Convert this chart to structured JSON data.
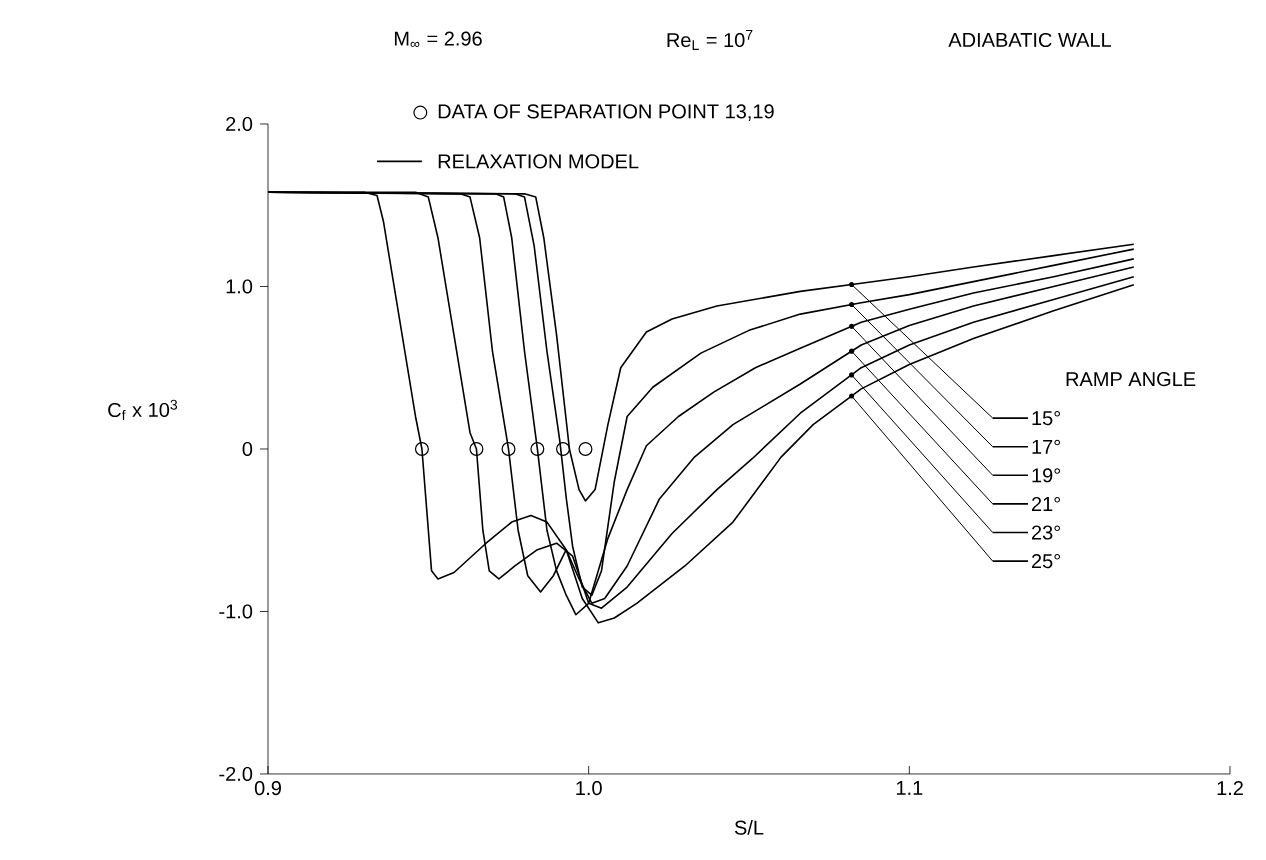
{
  "chart_data": {
    "type": "line",
    "title": "ADIABATIC WALL",
    "xlabel": "S/L",
    "ylabel": "C$_{f}$ x 10$^{3}$",
    "legend_title": "RAMP ANGLE",
    "annotations": [
      "M$_{∞}$ = 2.96",
      "Re$_{L}$ = 10$^{7}$",
      "RELAXATION MODEL"
    ],
    "xlim": [
      0.9,
      1.2
    ],
    "ylim": [
      -2.0,
      2.0
    ],
    "xticks": [
      0.9,
      {
        "value": 1.0,
        "label": "1.0"
      },
      1.1,
      1.2
    ],
    "yticks": [
      {
        "value": -2.0,
        "label": "-2.0"
      },
      {
        "value": -1.0,
        "label": "-1.0"
      },
      0,
      {
        "value": 1.0,
        "label": "1.0"
      },
      {
        "value": 2.0,
        "label": "2.0"
      }
    ],
    "grid": false,
    "legend": "right",
    "line_style": "solid",
    "marker": "none",
    "series": [
      {
        "name": "15°",
        "color": "#000000",
        "x": [
          0.9,
          0.98,
          0.9835,
          0.986,
          0.99,
          0.994,
          0.997,
          0.999,
          1.002,
          1.006,
          1.01,
          1.018,
          1.026,
          1.04,
          1.066,
          1.085,
          1.1,
          1.12,
          1.145,
          1.17
        ],
        "values": [
          1.58,
          1.57,
          1.55,
          1.3,
          0.7,
          0.0,
          -0.25,
          -0.32,
          -0.25,
          0.15,
          0.5,
          0.72,
          0.8,
          0.88,
          0.97,
          1.02,
          1.06,
          1.12,
          1.19,
          1.26
        ]
      },
      {
        "name": "17°",
        "color": "#000000",
        "x": [
          0.9,
          0.977,
          0.98,
          0.983,
          0.987,
          0.991,
          0.993,
          0.995,
          0.998,
          1.001,
          1.004,
          1.008,
          1.012,
          1.02,
          1.035,
          1.05,
          1.066,
          1.085,
          1.1,
          1.12,
          1.145,
          1.17
        ],
        "values": [
          1.58,
          1.57,
          1.55,
          1.25,
          0.6,
          0.05,
          -0.3,
          -0.6,
          -0.85,
          -0.9,
          -0.75,
          -0.2,
          0.2,
          0.38,
          0.59,
          0.73,
          0.83,
          0.9,
          0.95,
          1.03,
          1.13,
          1.23
        ]
      },
      {
        "name": "19°",
        "color": "#000000",
        "x": [
          0.9,
          0.971,
          0.9735,
          0.976,
          0.98,
          0.984,
          0.987,
          0.99,
          0.993,
          0.996,
          1.0,
          1.006,
          1.012,
          1.018,
          1.028,
          1.039,
          1.052,
          1.066,
          1.085,
          1.1,
          1.12,
          1.145,
          1.17
        ],
        "values": [
          1.58,
          1.57,
          1.55,
          1.3,
          0.6,
          0.0,
          -0.5,
          -0.75,
          -0.9,
          -1.02,
          -0.95,
          -0.55,
          -0.25,
          0.02,
          0.2,
          0.35,
          0.5,
          0.62,
          0.78,
          0.86,
          0.96,
          1.06,
          1.17
        ]
      },
      {
        "name": "21°",
        "color": "#000000",
        "x": [
          0.9,
          0.96,
          0.963,
          0.966,
          0.97,
          0.975,
          0.978,
          0.981,
          0.985,
          0.989,
          0.993,
          0.997,
          1.001,
          1.005,
          1.012,
          1.022,
          1.033,
          1.045,
          1.066,
          1.085,
          1.1,
          1.12,
          1.145,
          1.17
        ],
        "values": [
          1.58,
          1.57,
          1.55,
          1.3,
          0.6,
          0.0,
          -0.5,
          -0.78,
          -0.88,
          -0.78,
          -0.62,
          -0.8,
          -0.95,
          -0.92,
          -0.72,
          -0.31,
          -0.05,
          0.15,
          0.4,
          0.64,
          0.76,
          0.88,
          1.0,
          1.12
        ]
      },
      {
        "name": "23°",
        "color": "#000000",
        "x": [
          0.9,
          0.946,
          0.95,
          0.953,
          0.958,
          0.963,
          0.965,
          0.967,
          0.969,
          0.972,
          0.977,
          0.984,
          0.99,
          0.995,
          1.0,
          1.004,
          1.012,
          1.026,
          1.04,
          1.051,
          1.066,
          1.085,
          1.1,
          1.12,
          1.145,
          1.17
        ],
        "values": [
          1.58,
          1.58,
          1.55,
          1.3,
          0.7,
          0.1,
          0.0,
          -0.5,
          -0.75,
          -0.8,
          -0.72,
          -0.62,
          -0.58,
          -0.66,
          -0.95,
          -0.98,
          -0.85,
          -0.52,
          -0.25,
          -0.06,
          0.22,
          0.5,
          0.64,
          0.78,
          0.92,
          1.06
        ]
      },
      {
        "name": "25°",
        "color": "#000000",
        "x": [
          0.9,
          0.93,
          0.934,
          0.936,
          0.941,
          0.946,
          0.948,
          0.95,
          0.951,
          0.953,
          0.958,
          0.968,
          0.976,
          0.982,
          0.987,
          0.993,
          0.998,
          1.003,
          1.008,
          1.015,
          1.03,
          1.045,
          1.06,
          1.07,
          1.085,
          1.1,
          1.12,
          1.145,
          1.17
        ],
        "values": [
          1.58,
          1.58,
          1.56,
          1.4,
          0.8,
          0.2,
          0.0,
          -0.5,
          -0.75,
          -0.8,
          -0.76,
          -0.58,
          -0.45,
          -0.41,
          -0.45,
          -0.62,
          -0.92,
          -1.07,
          -1.04,
          -0.95,
          -0.72,
          -0.45,
          -0.05,
          0.15,
          0.37,
          0.52,
          0.68,
          0.85,
          1.01
        ]
      },
      {
        "name": "DATA OF SEPARATION POINT 13,19",
        "type": "scatter",
        "marker": "circle",
        "color": "#000000",
        "x": [
          0.948,
          0.965,
          0.975,
          0.984,
          0.992,
          0.999
        ],
        "values": [
          0,
          0,
          0,
          0,
          0,
          0
        ]
      }
    ]
  }
}
